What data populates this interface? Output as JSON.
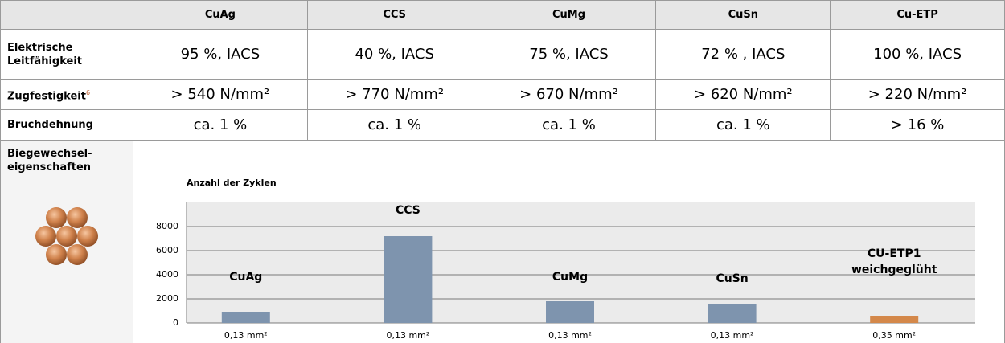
{
  "table": {
    "header": [
      "CuAg",
      "CCS",
      "CuMg",
      "CuSn",
      "Cu-ETP"
    ],
    "rows": [
      {
        "label": [
          "Elektrische",
          "Leitfähigkeit"
        ],
        "cells": [
          "95 %, IACS",
          "40 %, IACS",
          "75 %, IACS",
          "72 % , IACS",
          "100 %, IACS"
        ]
      },
      {
        "label": [
          "Zugfestigkeit"
        ],
        "footnote": "6",
        "cells": [
          "> 540 N/mm²",
          "> 770 N/mm²",
          "> 670 N/mm²",
          "> 620 N/mm²",
          "> 220 N/mm²"
        ]
      },
      {
        "label": [
          "Bruchdehnung"
        ],
        "cells": [
          "ca. 1 %",
          "ca. 1 %",
          "ca. 1 %",
          "ca. 1 %",
          "> 16 %"
        ]
      }
    ],
    "chart_row_label": [
      "Biegewechsel-",
      "eigenschaften"
    ]
  },
  "chart_data": {
    "type": "bar",
    "y_title": "Anzahl der Zyklen",
    "categories": [
      "0,13 mm²",
      "0,13 mm²",
      "0,13 mm²",
      "0,13 mm²",
      "0,35 mm²"
    ],
    "values": [
      900,
      7200,
      1800,
      1550,
      550
    ],
    "colors": [
      "#7e94ae",
      "#7e94ae",
      "#7e94ae",
      "#7e94ae",
      "#d4884a"
    ],
    "bar_labels": [
      [
        "CuAg"
      ],
      [
        "CCS"
      ],
      [
        "CuMg"
      ],
      [
        "CuSn"
      ],
      [
        "CU-ETP1",
        "weichgeglüht"
      ]
    ],
    "ylim": [
      0,
      10000
    ],
    "yticks": [
      0,
      2000,
      4000,
      6000,
      8000
    ],
    "grid": true
  }
}
